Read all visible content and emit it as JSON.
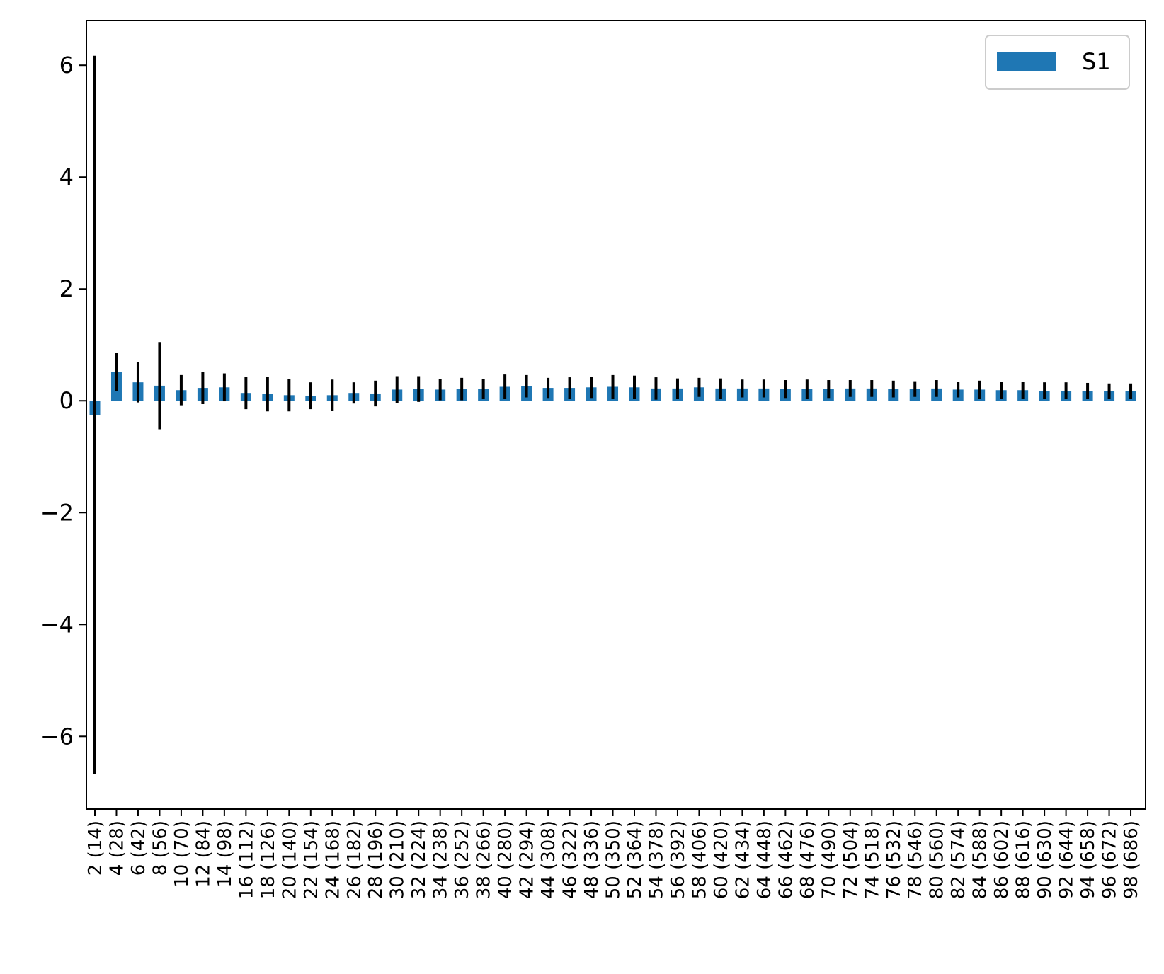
{
  "chart_data": {
    "type": "bar",
    "title": "",
    "xlabel": "",
    "ylabel": "",
    "ylim": [
      -7.3,
      6.8
    ],
    "yticks": [
      -6,
      -4,
      -2,
      0,
      2,
      4,
      6
    ],
    "ytick_labels": [
      "−6",
      "−4",
      "−2",
      "0",
      "2",
      "4",
      "6"
    ],
    "grid": false,
    "legend_placement": "top-right",
    "colors": {
      "bar": "#1f77b4",
      "errorbar": "#000000",
      "axes": "#000000",
      "legend_border": "#cccccc"
    },
    "categories": [
      "2 (14)",
      "4 (28)",
      "6 (42)",
      "8 (56)",
      "10 (70)",
      "12 (84)",
      "14 (98)",
      "16 (112)",
      "18 (126)",
      "20 (140)",
      "22 (154)",
      "24 (168)",
      "26 (182)",
      "28 (196)",
      "30 (210)",
      "32 (224)",
      "34 (238)",
      "36 (252)",
      "38 (266)",
      "40 (280)",
      "42 (294)",
      "44 (308)",
      "46 (322)",
      "48 (336)",
      "50 (350)",
      "52 (364)",
      "54 (378)",
      "56 (392)",
      "58 (406)",
      "60 (420)",
      "62 (434)",
      "64 (448)",
      "66 (462)",
      "68 (476)",
      "70 (490)",
      "72 (504)",
      "74 (518)",
      "76 (532)",
      "78 (546)",
      "80 (560)",
      "82 (574)",
      "84 (588)",
      "86 (602)",
      "88 (616)",
      "90 (630)",
      "92 (644)",
      "94 (658)",
      "96 (672)",
      "98 (686)"
    ],
    "series": [
      {
        "name": "S1",
        "values": [
          -0.25,
          0.52,
          0.33,
          0.27,
          0.19,
          0.23,
          0.24,
          0.14,
          0.12,
          0.1,
          0.09,
          0.1,
          0.14,
          0.13,
          0.2,
          0.21,
          0.2,
          0.21,
          0.21,
          0.25,
          0.26,
          0.23,
          0.23,
          0.24,
          0.25,
          0.24,
          0.22,
          0.22,
          0.24,
          0.22,
          0.22,
          0.22,
          0.21,
          0.21,
          0.21,
          0.22,
          0.22,
          0.21,
          0.21,
          0.22,
          0.2,
          0.2,
          0.19,
          0.19,
          0.18,
          0.18,
          0.18,
          0.17,
          0.17
        ],
        "errors": [
          6.42,
          0.34,
          0.36,
          0.78,
          0.27,
          0.29,
          0.25,
          0.29,
          0.31,
          0.29,
          0.24,
          0.28,
          0.19,
          0.23,
          0.24,
          0.23,
          0.19,
          0.2,
          0.18,
          0.22,
          0.2,
          0.18,
          0.19,
          0.19,
          0.21,
          0.21,
          0.2,
          0.18,
          0.17,
          0.18,
          0.16,
          0.16,
          0.16,
          0.17,
          0.16,
          0.15,
          0.15,
          0.15,
          0.14,
          0.15,
          0.14,
          0.16,
          0.15,
          0.15,
          0.15,
          0.15,
          0.14,
          0.14,
          0.14
        ]
      }
    ]
  }
}
